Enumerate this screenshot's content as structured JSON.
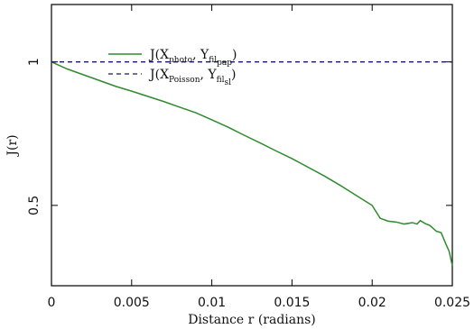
{
  "chart_data": {
    "type": "line",
    "xlabel": "Distance r (radians)",
    "ylabel": "J(r)",
    "xlim": [
      0,
      0.025
    ],
    "ylim": [
      0.22,
      1.2
    ],
    "x_ticks": [
      {
        "value": 0,
        "label": "0"
      },
      {
        "value": 0.005,
        "label": "0.005"
      },
      {
        "value": 0.01,
        "label": "0.01"
      },
      {
        "value": 0.015,
        "label": "0.015"
      },
      {
        "value": 0.02,
        "label": "0.02"
      },
      {
        "value": 0.025,
        "label": "0.025"
      }
    ],
    "y_ticks": [
      {
        "value": 0.5,
        "label": "0.5"
      },
      {
        "value": 1,
        "label": "1"
      }
    ],
    "legend_position": "top-left",
    "series": [
      {
        "name": "J(X_photo, Y_fil_pap)",
        "legend_main": "J(X",
        "legend_sub1": "photo",
        "legend_sep": ", Y",
        "legend_sub2": "fil",
        "legend_sub3": "pap",
        "legend_end": ")",
        "style": "solid",
        "color": "#2e8b2e",
        "x": [
          0,
          0.001,
          0.002,
          0.003,
          0.004,
          0.005,
          0.006,
          0.007,
          0.008,
          0.009,
          0.01,
          0.011,
          0.012,
          0.013,
          0.014,
          0.015,
          0.016,
          0.017,
          0.018,
          0.019,
          0.02,
          0.0205,
          0.021,
          0.0215,
          0.022,
          0.0225,
          0.0228,
          0.023,
          0.0233,
          0.0236,
          0.0238,
          0.024,
          0.0243,
          0.0246,
          0.0248,
          0.025
        ],
        "y": [
          1.0,
          0.975,
          0.955,
          0.935,
          0.915,
          0.898,
          0.88,
          0.862,
          0.842,
          0.823,
          0.798,
          0.773,
          0.745,
          0.718,
          0.69,
          0.663,
          0.633,
          0.603,
          0.57,
          0.535,
          0.5,
          0.455,
          0.445,
          0.442,
          0.435,
          0.44,
          0.435,
          0.447,
          0.437,
          0.43,
          0.42,
          0.41,
          0.405,
          0.365,
          0.34,
          0.29
        ]
      },
      {
        "name": "J(X_Poisson, Y_fil_sl)",
        "legend_main": "J(X",
        "legend_sub1": "Poisson",
        "legend_sep": ", Y",
        "legend_sub2": "fil",
        "legend_sub3": "sl",
        "legend_end": ")",
        "style": "dashed",
        "color": "#1a1a66",
        "x": [
          0,
          0.025
        ],
        "y": [
          1.0,
          1.0
        ]
      }
    ]
  }
}
